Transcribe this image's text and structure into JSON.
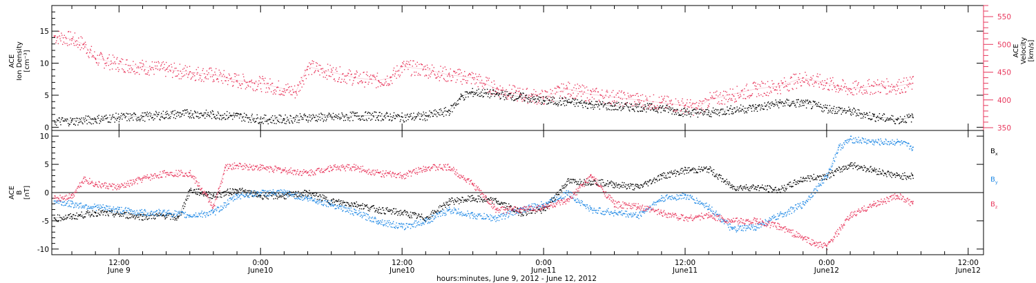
{
  "figure": {
    "x_title": "hours:minutes, June  9, 2012 - June 12, 2012",
    "x_ticks": [
      {
        "time": "12:00",
        "date": "June 9",
        "hours": 12
      },
      {
        "time": "0:00",
        "date": "June10",
        "hours": 24
      },
      {
        "time": "12:00",
        "date": "June10",
        "hours": 36
      },
      {
        "time": "0:00",
        "date": "June11",
        "hours": 48
      },
      {
        "time": "12:00",
        "date": "June11",
        "hours": 60
      },
      {
        "time": "0:00",
        "date": "June12",
        "hours": 72
      },
      {
        "time": "12:00",
        "date": "June12",
        "hours": 84
      }
    ],
    "x_range_hours": [
      6.3,
      85.3
    ],
    "data_end_hours": 79.3
  },
  "chart_data": [
    {
      "type": "scatter",
      "panel": "top",
      "ylabel": [
        "ACE",
        "Ion Density",
        "[cm⁻³]"
      ],
      "ylim": [
        -0.5,
        19
      ],
      "yticks": [
        0,
        5,
        10,
        15
      ],
      "y2label": [
        "ACE",
        "Velocity",
        "[km/s]"
      ],
      "y2lim": [
        345,
        570
      ],
      "y2ticks": [
        350,
        400,
        450,
        500,
        550
      ],
      "series": [
        {
          "name": "Ion Density",
          "axis": "left",
          "color": "#000000",
          "x": [
            6.5,
            8,
            10,
            12,
            14,
            16,
            18,
            20,
            22,
            24,
            26,
            28,
            30,
            32,
            34,
            36,
            38,
            40,
            41,
            42,
            44,
            46,
            48,
            50,
            52,
            54,
            56,
            58,
            60,
            62,
            64,
            66,
            68,
            70,
            72,
            74,
            76,
            78,
            79.3
          ],
          "y": [
            1,
            1,
            1.3,
            1.6,
            1.7,
            2,
            2.2,
            2,
            1.8,
            1.3,
            1.3,
            1.6,
            1.6,
            1.8,
            1.8,
            1.6,
            1.8,
            2.6,
            4.8,
            5.5,
            5.2,
            4.8,
            4.2,
            4,
            3.6,
            3.3,
            3.2,
            3,
            2.4,
            2.3,
            2.8,
            3.1,
            3.8,
            3.8,
            3,
            2.5,
            1.7,
            1.2,
            1.6
          ]
        },
        {
          "name": "Velocity",
          "axis": "right",
          "color": "#e8375c",
          "x": [
            6.5,
            8,
            9,
            10,
            12,
            14,
            16,
            18,
            20,
            22,
            24,
            26,
            27,
            28,
            30,
            32,
            34,
            35,
            36,
            38,
            40,
            42,
            44,
            46,
            48,
            50,
            52,
            54,
            56,
            58,
            60,
            61,
            62,
            64,
            66,
            68,
            70,
            72,
            73,
            74,
            76,
            78,
            79.3
          ],
          "y": [
            515,
            510,
            500,
            475,
            465,
            460,
            455,
            450,
            445,
            435,
            430,
            420,
            415,
            460,
            450,
            440,
            435,
            440,
            460,
            455,
            445,
            440,
            420,
            410,
            405,
            420,
            410,
            405,
            400,
            395,
            390,
            385,
            400,
            410,
            420,
            425,
            440,
            430,
            425,
            420,
            425,
            425,
            430
          ]
        }
      ]
    },
    {
      "type": "scatter",
      "panel": "bottom",
      "ylabel": [
        "ACE",
        "B",
        "[nT]"
      ],
      "ylim": [
        -11,
        11
      ],
      "yticks": [
        -10,
        -5,
        0,
        5,
        10
      ],
      "zero_line": true,
      "series": [
        {
          "name": "B",
          "sub": "x",
          "color": "#000000",
          "x": [
            6.5,
            8,
            10,
            12,
            14,
            16,
            17,
            18,
            20,
            22,
            24,
            26,
            28,
            30,
            32,
            34,
            36,
            38,
            40,
            42,
            44,
            46,
            48,
            50,
            52,
            54,
            56,
            58,
            60,
            62,
            64,
            66,
            68,
            70,
            72,
            74,
            76,
            78,
            79.3
          ],
          "y": [
            -4.5,
            -4.2,
            -3.5,
            -3.8,
            -4.2,
            -4,
            -4.5,
            0.5,
            -0.5,
            0.5,
            -0.5,
            -0.5,
            0,
            -1.5,
            -2,
            -3,
            -3.5,
            -4.5,
            -1.5,
            -1,
            -1.5,
            -3.5,
            -3,
            2,
            2,
            1.5,
            1,
            3,
            4,
            4.2,
            1,
            1,
            0.5,
            2.5,
            3,
            5,
            4,
            3,
            3
          ]
        },
        {
          "name": "B",
          "sub": "y",
          "color": "#1e88e5",
          "x": [
            6.5,
            8,
            10,
            12,
            14,
            16,
            18,
            20,
            22,
            24,
            26,
            28,
            30,
            32,
            34,
            36,
            38,
            40,
            42,
            44,
            46,
            48,
            50,
            52,
            54,
            56,
            58,
            60,
            62,
            64,
            66,
            68,
            70,
            72,
            73,
            74,
            76,
            78,
            79.3
          ],
          "y": [
            -1.5,
            -2,
            -2.5,
            -3,
            -3.5,
            -3.5,
            -4,
            -3.5,
            -0.5,
            0,
            0,
            -1,
            -2,
            -3.5,
            -5,
            -6,
            -5,
            -3,
            -4,
            -4.5,
            -3,
            -2,
            0,
            -3,
            -3.5,
            -4,
            -1,
            -0.5,
            -2.5,
            -6.5,
            -6,
            -4,
            -2,
            3,
            8,
            9.5,
            9,
            9,
            8
          ]
        },
        {
          "name": "B",
          "sub": "z",
          "color": "#e8375c",
          "x": [
            6.5,
            8,
            9,
            10,
            12,
            14,
            16,
            18,
            20,
            21,
            22,
            24,
            26,
            28,
            30,
            32,
            34,
            36,
            38,
            40,
            42,
            44,
            46,
            48,
            50,
            52,
            54,
            56,
            58,
            60,
            62,
            64,
            66,
            68,
            70,
            71,
            72,
            74,
            76,
            78,
            79.3
          ],
          "y": [
            -1,
            -0.5,
            2.5,
            1.5,
            1,
            2.5,
            3.5,
            3.5,
            -2.5,
            4.5,
            4.8,
            4.5,
            4,
            3.5,
            4.5,
            4.5,
            3.5,
            3,
            4.5,
            4.5,
            1.5,
            -3,
            -3,
            -2.5,
            -1.5,
            3,
            -2,
            -2.5,
            -3.5,
            -4.5,
            -4,
            -5,
            -5,
            -6,
            -8,
            -9,
            -9.5,
            -4,
            -2,
            -0.5,
            -2
          ]
        }
      ]
    }
  ]
}
